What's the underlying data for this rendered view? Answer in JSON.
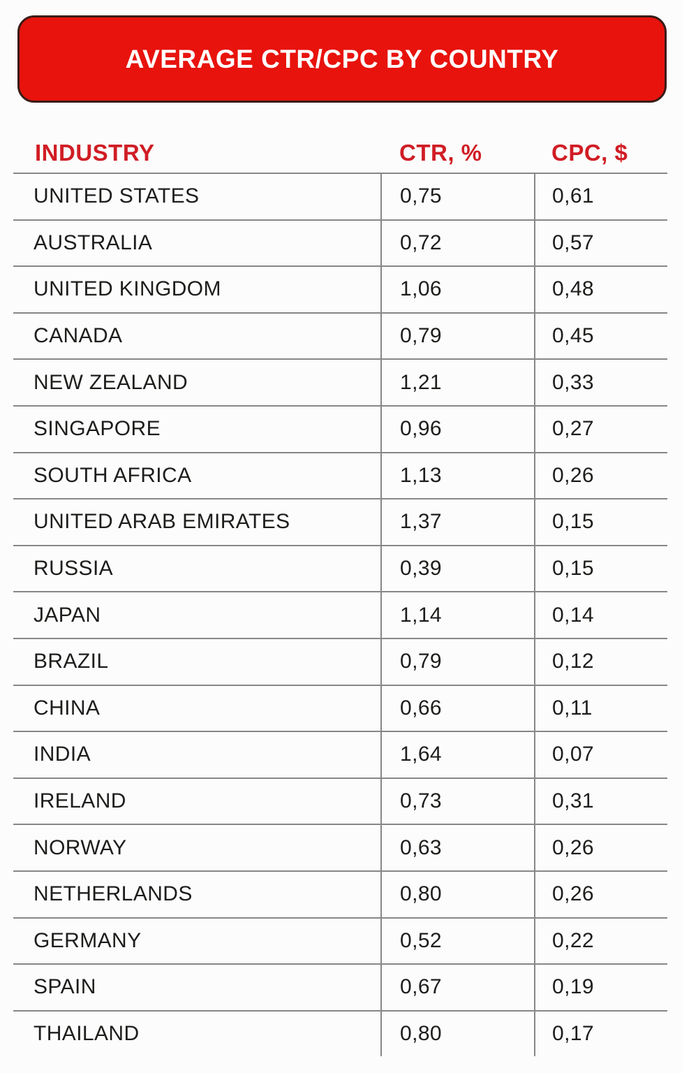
{
  "banner": {
    "title": "AVERAGE CTR/CPC BY COUNTRY",
    "bg_color": "#e8130d",
    "border_color": "#3a1b17",
    "text_color": "#ffffff"
  },
  "table": {
    "header_color": "#d01d24",
    "headers": [
      {
        "label": "INDUSTRY"
      },
      {
        "label": "CTR, %"
      },
      {
        "label": "CPC, $"
      }
    ],
    "rows": [
      {
        "country": "UNITED STATES",
        "ctr": "0,75",
        "cpc": "0,61"
      },
      {
        "country": "AUSTRALIA",
        "ctr": "0,72",
        "cpc": "0,57"
      },
      {
        "country": "UNITED KINGDOM",
        "ctr": "1,06",
        "cpc": "0,48"
      },
      {
        "country": "CANADA",
        "ctr": "0,79",
        "cpc": "0,45"
      },
      {
        "country": "NEW ZEALAND",
        "ctr": "1,21",
        "cpc": "0,33"
      },
      {
        "country": "SINGAPORE",
        "ctr": "0,96",
        "cpc": "0,27"
      },
      {
        "country": "SOUTH AFRICA",
        "ctr": "1,13",
        "cpc": "0,26"
      },
      {
        "country": "UNITED ARAB EMIRATES",
        "ctr": "1,37",
        "cpc": "0,15"
      },
      {
        "country": "RUSSIA",
        "ctr": "0,39",
        "cpc": "0,15"
      },
      {
        "country": "JAPAN",
        "ctr": "1,14",
        "cpc": "0,14"
      },
      {
        "country": "BRAZIL",
        "ctr": "0,79",
        "cpc": "0,12"
      },
      {
        "country": "CHINA",
        "ctr": "0,66",
        "cpc": "0,11"
      },
      {
        "country": "INDIA",
        "ctr": "1,64",
        "cpc": "0,07"
      },
      {
        "country": "IRELAND",
        "ctr": "0,73",
        "cpc": "0,31"
      },
      {
        "country": "NORWAY",
        "ctr": "0,63",
        "cpc": "0,26"
      },
      {
        "country": "NETHERLANDS",
        "ctr": "0,80",
        "cpc": "0,26"
      },
      {
        "country": "GERMANY",
        "ctr": "0,52",
        "cpc": "0,22"
      },
      {
        "country": "SPAIN",
        "ctr": "0,67",
        "cpc": "0,19"
      },
      {
        "country": "THAILAND",
        "ctr": "0,80",
        "cpc": "0,17"
      }
    ],
    "grid_line_color": "#878787"
  },
  "chart_data": {
    "type": "table",
    "title": "AVERAGE CTR/CPC BY COUNTRY",
    "columns": [
      "INDUSTRY",
      "CTR, %",
      "CPC, $"
    ],
    "decimal_separator": ",",
    "rows": [
      [
        "UNITED STATES",
        0.75,
        0.61
      ],
      [
        "AUSTRALIA",
        0.72,
        0.57
      ],
      [
        "UNITED KINGDOM",
        1.06,
        0.48
      ],
      [
        "CANADA",
        0.79,
        0.45
      ],
      [
        "NEW ZEALAND",
        1.21,
        0.33
      ],
      [
        "SINGAPORE",
        0.96,
        0.27
      ],
      [
        "SOUTH AFRICA",
        1.13,
        0.26
      ],
      [
        "UNITED ARAB EMIRATES",
        1.37,
        0.15
      ],
      [
        "RUSSIA",
        0.39,
        0.15
      ],
      [
        "JAPAN",
        1.14,
        0.14
      ],
      [
        "BRAZIL",
        0.79,
        0.12
      ],
      [
        "CHINA",
        0.66,
        0.11
      ],
      [
        "INDIA",
        1.64,
        0.07
      ],
      [
        "IRELAND",
        0.73,
        0.31
      ],
      [
        "NORWAY",
        0.63,
        0.26
      ],
      [
        "NETHERLANDS",
        0.8,
        0.26
      ],
      [
        "GERMANY",
        0.52,
        0.22
      ],
      [
        "SPAIN",
        0.67,
        0.19
      ],
      [
        "THAILAND",
        0.8,
        0.17
      ]
    ]
  }
}
